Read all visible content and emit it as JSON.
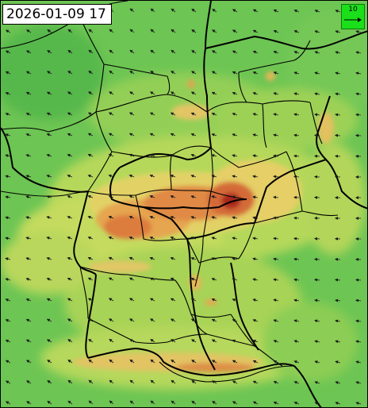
{
  "map": {
    "timestamp": "2026-01-09 17",
    "wind_legend_value": "10",
    "colors": {
      "low": "#5cbf4f",
      "mid": "#a9d454",
      "high": "#ecd36a",
      "very_high": "#df7f3f",
      "peak": "#a31d18",
      "borders": "#000000",
      "legend_box": "#1adf1a"
    }
  }
}
